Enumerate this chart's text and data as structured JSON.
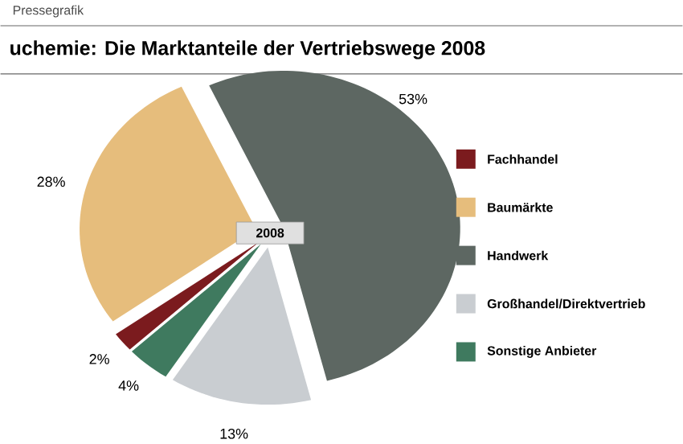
{
  "chart_data": {
    "type": "pie",
    "title": "uchemie: Die Marktanteile der Vertriebswege 2008",
    "subtitle": "Pressegrafik",
    "categories": [
      "Fachhandel",
      "Baumärkte",
      "Handwerk",
      "Großhandel/Direktvertrieb",
      "Sonstige Anbieter"
    ],
    "values": [
      2,
      28,
      53,
      13,
      4
    ],
    "colors": [
      "#7b1b1e",
      "#e6bd7c",
      "#5d6762",
      "#c9cdd1",
      "#3f7a5f"
    ],
    "value_labels": [
      "2%",
      "28%",
      "53%",
      "13%",
      "4%"
    ],
    "annotations": [
      "2008"
    ],
    "legend": "right"
  }
}
